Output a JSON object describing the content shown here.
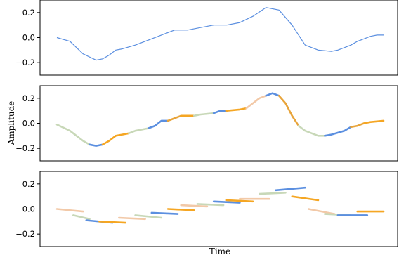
{
  "chart_data": {
    "type": "line",
    "xlabel": "Time",
    "ylabel": "Amplitude",
    "palette": [
      "#5b8fe0",
      "#f5a623",
      "#c8d8b8",
      "#f2c9a8",
      "#e8a43a"
    ],
    "panels": [
      {
        "name": "panel-1",
        "ylim": [
          -0.3,
          0.3
        ],
        "yticks": [
          0.2,
          0.0,
          -0.2
        ],
        "ytick_labels": [
          "0.2",
          "0.0",
          "−0.2"
        ],
        "grid": false,
        "series": [
          {
            "color": "#5b8fe0",
            "style": "thin",
            "x": [
              0,
              4,
              8,
              12,
              14,
              16,
              18,
              20,
              24,
              28,
              32,
              36,
              40,
              44,
              48,
              52,
              56,
              60,
              64,
              68,
              72,
              76,
              80,
              84,
              86,
              88,
              90,
              92,
              94,
              96,
              98,
              100
            ],
            "y": [
              0.0,
              -0.03,
              -0.13,
              -0.18,
              -0.17,
              -0.14,
              -0.1,
              -0.09,
              -0.06,
              -0.02,
              0.02,
              0.06,
              0.06,
              0.08,
              0.1,
              0.1,
              0.12,
              0.17,
              0.24,
              0.22,
              0.1,
              -0.06,
              -0.1,
              -0.11,
              -0.1,
              -0.08,
              -0.06,
              -0.03,
              -0.01,
              0.01,
              0.02,
              0.02
            ]
          }
        ]
      },
      {
        "name": "panel-2",
        "ylim": [
          -0.3,
          0.3
        ],
        "yticks": [
          0.2,
          0.0,
          -0.2
        ],
        "ytick_labels": [
          "0.2",
          "0.0",
          "−0.2"
        ],
        "grid": false,
        "series": [
          {
            "color": "#c8d8b8",
            "style": "thick",
            "x": [
              0,
              4,
              8,
              10
            ],
            "y": [
              -0.01,
              -0.06,
              -0.14,
              -0.17
            ]
          },
          {
            "color": "#5b8fe0",
            "style": "thick",
            "x": [
              10,
              12,
              14
            ],
            "y": [
              -0.17,
              -0.18,
              -0.17
            ]
          },
          {
            "color": "#f5a623",
            "style": "thick",
            "x": [
              14,
              16,
              18,
              20,
              22
            ],
            "y": [
              -0.17,
              -0.14,
              -0.1,
              -0.09,
              -0.08
            ]
          },
          {
            "color": "#c8d8b8",
            "style": "thick",
            "x": [
              22,
              24,
              28
            ],
            "y": [
              -0.08,
              -0.06,
              -0.04
            ]
          },
          {
            "color": "#5b8fe0",
            "style": "thick",
            "x": [
              28,
              30,
              32,
              34
            ],
            "y": [
              -0.04,
              -0.02,
              0.02,
              0.02
            ]
          },
          {
            "color": "#e8a43a",
            "style": "thick",
            "x": [
              34,
              36,
              38
            ],
            "y": [
              0.02,
              0.04,
              0.06
            ]
          },
          {
            "color": "#f5a623",
            "style": "thick",
            "x": [
              38,
              40,
              42
            ],
            "y": [
              0.06,
              0.06,
              0.06
            ]
          },
          {
            "color": "#c8d8b8",
            "style": "thick",
            "x": [
              42,
              44,
              48
            ],
            "y": [
              0.06,
              0.07,
              0.08
            ]
          },
          {
            "color": "#5b8fe0",
            "style": "thick",
            "x": [
              48,
              50,
              52
            ],
            "y": [
              0.08,
              0.1,
              0.1
            ]
          },
          {
            "color": "#f5a623",
            "style": "thick",
            "x": [
              52,
              56,
              58
            ],
            "y": [
              0.1,
              0.11,
              0.12
            ]
          },
          {
            "color": "#f2c9a8",
            "style": "thick",
            "x": [
              58,
              60,
              62,
              64
            ],
            "y": [
              0.12,
              0.16,
              0.2,
              0.22
            ]
          },
          {
            "color": "#5b8fe0",
            "style": "thick",
            "x": [
              64,
              66,
              68
            ],
            "y": [
              0.22,
              0.24,
              0.22
            ]
          },
          {
            "color": "#e8a43a",
            "style": "thick",
            "x": [
              68,
              70,
              72,
              74
            ],
            "y": [
              0.22,
              0.16,
              0.06,
              -0.02
            ]
          },
          {
            "color": "#c8d8b8",
            "style": "thick",
            "x": [
              74,
              76,
              80,
              82
            ],
            "y": [
              -0.02,
              -0.06,
              -0.1,
              -0.1
            ]
          },
          {
            "color": "#5b8fe0",
            "style": "thick",
            "x": [
              82,
              84,
              88,
              90
            ],
            "y": [
              -0.1,
              -0.09,
              -0.06,
              -0.03
            ]
          },
          {
            "color": "#e8a43a",
            "style": "thick",
            "x": [
              90,
              92,
              94
            ],
            "y": [
              -0.03,
              -0.02,
              0.0
            ]
          },
          {
            "color": "#f5a623",
            "style": "thick",
            "x": [
              94,
              96,
              100
            ],
            "y": [
              0.0,
              0.01,
              0.02
            ]
          }
        ]
      },
      {
        "name": "panel-3",
        "ylim": [
          -0.3,
          0.3
        ],
        "yticks": [
          0.2,
          0.0,
          -0.2
        ],
        "ytick_labels": [
          "0.2",
          "0.0",
          "−0.2"
        ],
        "grid": false,
        "series": [
          {
            "color": "#f2c9a8",
            "style": "thick",
            "x": [
              0,
              8
            ],
            "y": [
              0.0,
              -0.02
            ]
          },
          {
            "color": "#c8d8b8",
            "style": "thick",
            "x": [
              5,
              10
            ],
            "y": [
              -0.05,
              -0.08
            ]
          },
          {
            "color": "#5b8fe0",
            "style": "thick",
            "x": [
              9,
              17
            ],
            "y": [
              -0.09,
              -0.11
            ]
          },
          {
            "color": "#f5a623",
            "style": "thick",
            "x": [
              13,
              21
            ],
            "y": [
              -0.1,
              -0.11
            ]
          },
          {
            "color": "#f2c9a8",
            "style": "thick",
            "x": [
              19,
              27
            ],
            "y": [
              -0.07,
              -0.08
            ]
          },
          {
            "color": "#c8d8b8",
            "style": "thick",
            "x": [
              24,
              32
            ],
            "y": [
              -0.05,
              -0.07
            ]
          },
          {
            "color": "#5b8fe0",
            "style": "thick",
            "x": [
              29,
              37
            ],
            "y": [
              -0.03,
              -0.04
            ]
          },
          {
            "color": "#f5a623",
            "style": "thick",
            "x": [
              34,
              42
            ],
            "y": [
              0.0,
              -0.01
            ]
          },
          {
            "color": "#f2c9a8",
            "style": "thick",
            "x": [
              38,
              46
            ],
            "y": [
              0.03,
              0.02
            ]
          },
          {
            "color": "#c8d8b8",
            "style": "thick",
            "x": [
              43,
              51
            ],
            "y": [
              0.04,
              0.03
            ]
          },
          {
            "color": "#5b8fe0",
            "style": "thick",
            "x": [
              48,
              56
            ],
            "y": [
              0.06,
              0.05
            ]
          },
          {
            "color": "#f5a623",
            "style": "thick",
            "x": [
              52,
              60
            ],
            "y": [
              0.07,
              0.06
            ]
          },
          {
            "color": "#f2c9a8",
            "style": "thick",
            "x": [
              56,
              65
            ],
            "y": [
              0.08,
              0.08
            ]
          },
          {
            "color": "#c8d8b8",
            "style": "thick",
            "x": [
              62,
              70
            ],
            "y": [
              0.12,
              0.13
            ]
          },
          {
            "color": "#5b8fe0",
            "style": "thick",
            "x": [
              67,
              76
            ],
            "y": [
              0.15,
              0.17
            ]
          },
          {
            "color": "#f5a623",
            "style": "thick",
            "x": [
              72,
              80
            ],
            "y": [
              0.1,
              0.07
            ]
          },
          {
            "color": "#f2c9a8",
            "style": "thick",
            "x": [
              77,
              85
            ],
            "y": [
              0.0,
              -0.04
            ]
          },
          {
            "color": "#c8d8b8",
            "style": "thick",
            "x": [
              82,
              90
            ],
            "y": [
              -0.04,
              -0.05
            ]
          },
          {
            "color": "#5b8fe0",
            "style": "thick",
            "x": [
              86,
              95
            ],
            "y": [
              -0.05,
              -0.05
            ]
          },
          {
            "color": "#f5a623",
            "style": "thick",
            "x": [
              92,
              100
            ],
            "y": [
              -0.02,
              -0.02
            ]
          }
        ]
      }
    ]
  }
}
